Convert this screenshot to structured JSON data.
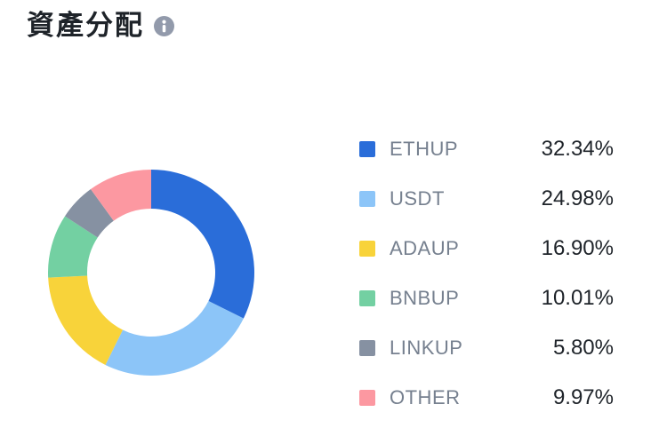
{
  "header": {
    "title": "資產分配"
  },
  "colors": {
    "background": "#FFFFFF",
    "title_text": "#1E2329",
    "legend_label_text": "#76808F",
    "legend_value_text": "#1E2329",
    "info_icon": "#929AAB",
    "info_icon_glyph": "#FFFFFF"
  },
  "chart_data": {
    "type": "pie",
    "subtype": "donut",
    "title": "資產分配",
    "start_angle_deg": 0,
    "direction": "clockwise",
    "inner_radius_ratio": 0.62,
    "legend_position": "right",
    "labels": [
      "ETHUP",
      "USDT",
      "ADAUP",
      "BNBUP",
      "LINKUP",
      "OTHER"
    ],
    "values": [
      32.34,
      24.98,
      16.9,
      10.01,
      5.8,
      9.97
    ],
    "value_labels": [
      "32.34%",
      "24.98%",
      "16.90%",
      "10.01%",
      "5.80%",
      "9.97%"
    ],
    "slice_colors": [
      "#2A6DD9",
      "#8CC5F8",
      "#F8D33A",
      "#73D0A2",
      "#8691A2",
      "#FC98A1"
    ]
  }
}
